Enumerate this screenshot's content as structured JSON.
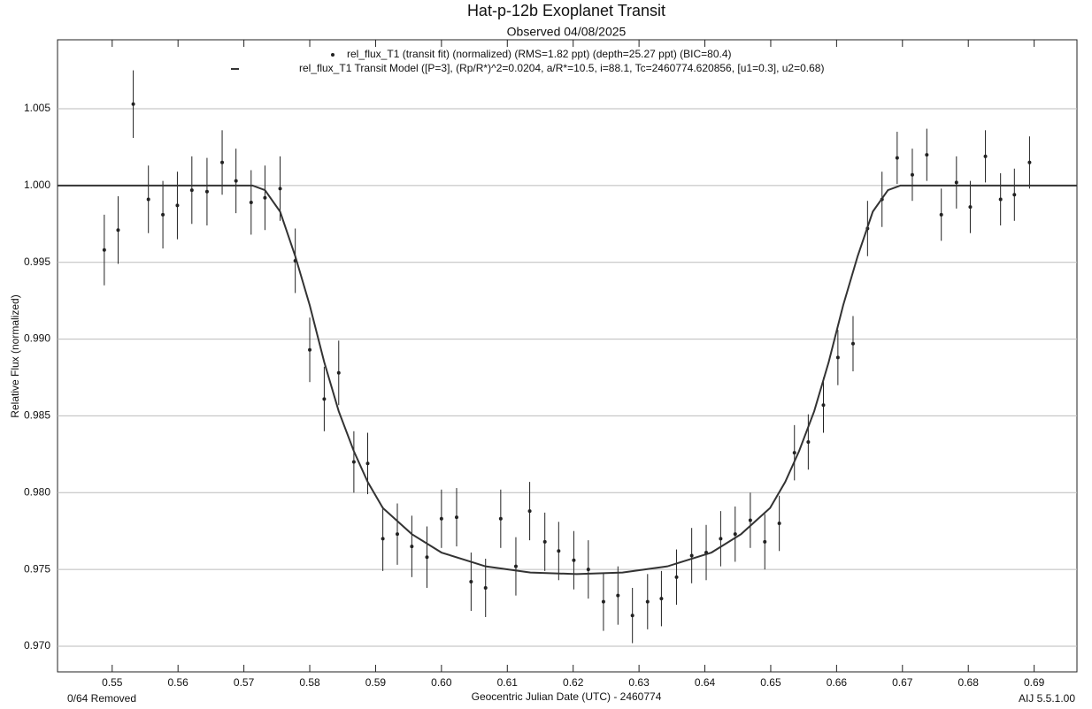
{
  "chart_data": {
    "type": "scatter",
    "title": "Hat-p-12b Exoplanet Transit",
    "subtitle": "Observed 04/08/2025",
    "x_label": "Geocentric Julian Date (UTC) - 2460774",
    "y_label": "Relative Flux (normalized)",
    "annotations": [
      "0/64 Removed",
      "AIJ 5.5.1.00"
    ],
    "xlim": [
      0.5417,
      0.6965
    ],
    "ylim": [
      0.96833,
      1.00949
    ],
    "xticks": [
      0.55,
      0.56,
      0.57,
      0.58,
      0.59,
      {
        "value": 0.6,
        "label": "0.60"
      },
      0.61,
      0.62,
      0.63,
      0.64,
      0.65,
      0.66,
      0.67,
      0.68,
      0.69
    ],
    "yticks": [
      {
        "value": 0.97,
        "label": "0.970"
      },
      0.975,
      {
        "value": 0.98,
        "label": "0.980"
      },
      0.985,
      {
        "value": 0.99,
        "label": "0.990"
      },
      0.995,
      {
        "value": 1,
        "label": "1.000"
      },
      1.005
    ],
    "grid": true,
    "series": [
      {
        "name": "rel_flux_T1 (transit fit) (normalized) (RMS=1.82 ppt) (depth=25.27 ppt) (BIC=80.4)",
        "color": "#222222",
        "x": [
          0.5488,
          0.5509,
          0.5532,
          0.5555,
          0.5577,
          0.5599,
          0.5621,
          0.5644,
          0.5667,
          0.5688,
          0.5711,
          0.5732,
          0.5755,
          0.5778,
          0.58,
          0.5822,
          0.5844,
          0.5867,
          0.5888,
          0.5911,
          0.5933,
          0.5955,
          0.5978,
          0.6,
          0.6023,
          0.6045,
          0.6067,
          0.609,
          0.6113,
          0.6134,
          0.6157,
          0.6178,
          0.6201,
          0.6223,
          0.6246,
          0.6268,
          0.629,
          0.6313,
          0.6334,
          0.6357,
          0.638,
          0.6402,
          0.6424,
          0.6446,
          0.6469,
          0.6491,
          0.6513,
          0.6536,
          0.6557,
          0.658,
          0.6602,
          0.6625,
          0.6647,
          0.6669,
          0.6692,
          0.6715,
          0.6737,
          0.6759,
          0.6782,
          0.6803,
          0.6826,
          0.6849,
          0.687,
          0.6893
        ],
        "values": [
          0.9958,
          0.9971,
          1.0053,
          0.9991,
          0.9981,
          0.9987,
          0.9997,
          0.9996,
          1.0015,
          1.0003,
          0.9989,
          0.9992,
          0.9998,
          0.9951,
          0.9893,
          0.9861,
          0.9878,
          0.982,
          0.9819,
          0.977,
          0.9773,
          0.9765,
          0.9758,
          0.9783,
          0.9784,
          0.9742,
          0.9738,
          0.9783,
          0.9752,
          0.9788,
          0.9768,
          0.9762,
          0.9756,
          0.975,
          0.9729,
          0.9733,
          0.972,
          0.9729,
          0.9731,
          0.9745,
          0.9759,
          0.9761,
          0.977,
          0.9773,
          0.9782,
          0.9768,
          0.978,
          0.9826,
          0.9833,
          0.9857,
          0.9888,
          0.9897,
          0.9972,
          0.9991,
          1.0018,
          1.0007,
          1.002,
          0.9981,
          1.0002,
          0.9986,
          1.0019,
          0.9991,
          0.9994,
          1.0015
        ],
        "errors": [
          0.0023,
          0.0022,
          0.0022,
          0.0022,
          0.0022,
          0.0022,
          0.0022,
          0.0022,
          0.0021,
          0.0021,
          0.0021,
          0.0021,
          0.0021,
          0.0021,
          0.0021,
          0.0021,
          0.0021,
          0.002,
          0.002,
          0.0021,
          0.002,
          0.002,
          0.002,
          0.0019,
          0.0019,
          0.0019,
          0.0019,
          0.0019,
          0.0019,
          0.0019,
          0.0019,
          0.0019,
          0.0019,
          0.0019,
          0.0019,
          0.0019,
          0.0018,
          0.0018,
          0.0018,
          0.0018,
          0.0018,
          0.0018,
          0.0018,
          0.0018,
          0.0018,
          0.0018,
          0.0018,
          0.0018,
          0.0018,
          0.0018,
          0.0018,
          0.0018,
          0.0018,
          0.0018,
          0.0017,
          0.0017,
          0.0017,
          0.0017,
          0.0017,
          0.0017,
          0.0017,
          0.0017,
          0.0017,
          0.0017
        ]
      },
      {
        "name": "rel_flux_T1 Transit Model ([P=3], (Rp/R*)^2=0.0204, a/R*=10.5, i=88.1, Tc=2460774.620856, [u1=0.3], u2=0.68)",
        "color": "#333333",
        "x": [
          0.5417,
          0.5713,
          0.5732,
          0.5755,
          0.5778,
          0.58,
          0.5822,
          0.5844,
          0.5867,
          0.5888,
          0.5911,
          0.5955,
          0.6,
          0.6067,
          0.6135,
          0.6205,
          0.6275,
          0.6343,
          0.641,
          0.6455,
          0.6499,
          0.6522,
          0.6543,
          0.6566,
          0.6588,
          0.661,
          0.6632,
          0.6655,
          0.6678,
          0.6697,
          0.6965
        ],
        "values": [
          1,
          1,
          0.9997,
          0.9983,
          0.9954,
          0.9922,
          0.9885,
          0.9853,
          0.9827,
          0.9807,
          0.979,
          0.9773,
          0.9761,
          0.9752,
          0.9748,
          0.9747,
          0.9748,
          0.9752,
          0.9761,
          0.9773,
          0.979,
          0.9807,
          0.9827,
          0.9853,
          0.9885,
          0.9922,
          0.9954,
          0.9983,
          0.9997,
          1,
          1
        ]
      }
    ]
  }
}
